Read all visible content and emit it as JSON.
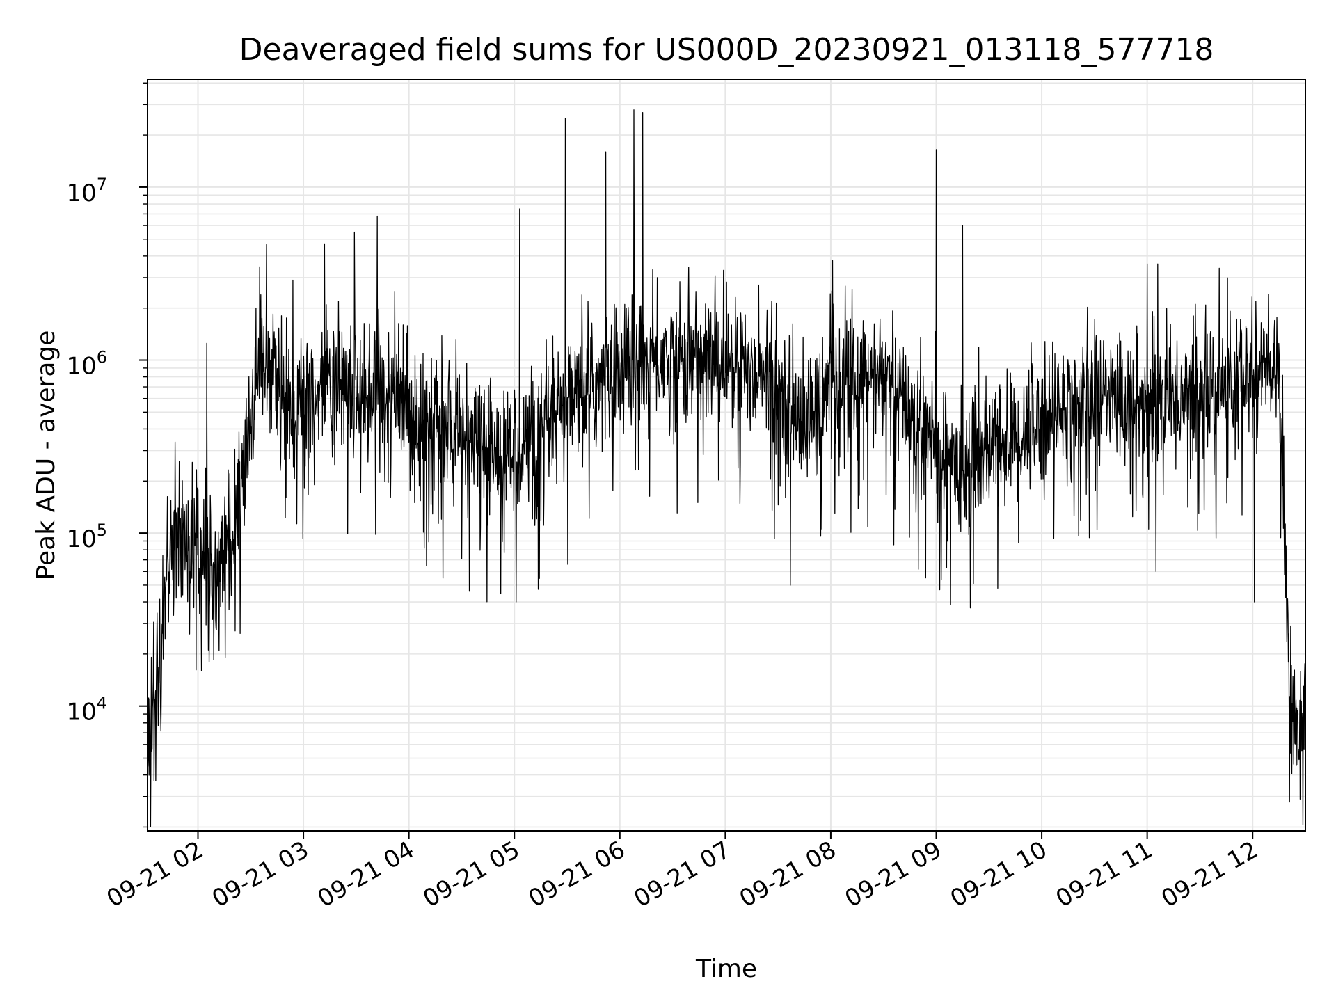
{
  "chart_data": {
    "type": "line",
    "title": "Deaveraged field sums for US000D_20230921_013118_577718",
    "xlabel": "Time",
    "ylabel": "Peak ADU - average",
    "x_range": [
      "2023-09-21T01:31:18",
      "2023-09-21T12:30:00"
    ],
    "y_scale": "log",
    "ylim": [
      1900,
      42000000
    ],
    "grid": true,
    "line_color": "#000000",
    "x_ticks": [
      {
        "value": "2023-09-21T02:00:00",
        "label": "09-21 02"
      },
      {
        "value": "2023-09-21T03:00:00",
        "label": "09-21 03"
      },
      {
        "value": "2023-09-21T04:00:00",
        "label": "09-21 04"
      },
      {
        "value": "2023-09-21T05:00:00",
        "label": "09-21 05"
      },
      {
        "value": "2023-09-21T06:00:00",
        "label": "09-21 06"
      },
      {
        "value": "2023-09-21T07:00:00",
        "label": "09-21 07"
      },
      {
        "value": "2023-09-21T08:00:00",
        "label": "09-21 08"
      },
      {
        "value": "2023-09-21T09:00:00",
        "label": "09-21 09"
      },
      {
        "value": "2023-09-21T10:00:00",
        "label": "09-21 10"
      },
      {
        "value": "2023-09-21T11:00:00",
        "label": "09-21 11"
      },
      {
        "value": "2023-09-21T12:00:00",
        "label": "09-21 12"
      }
    ],
    "y_ticks": [
      {
        "value": 10000,
        "base": "10",
        "exp": "4"
      },
      {
        "value": 100000,
        "base": "10",
        "exp": "5"
      },
      {
        "value": 1000000,
        "base": "10",
        "exp": "6"
      },
      {
        "value": 10000000,
        "base": "10",
        "exp": "7"
      }
    ],
    "series": [
      {
        "x": [
          "2023-09-21T01:31:18",
          "2023-09-21T01:33:00",
          "2023-09-21T01:35:00",
          "2023-09-21T01:38:00",
          "2023-09-21T01:41:00",
          "2023-09-21T01:44:00",
          "2023-09-21T01:47:00",
          "2023-09-21T01:50:00",
          "2023-09-21T01:53:00",
          "2023-09-21T01:56:00",
          "2023-09-21T02:00:00",
          "2023-09-21T02:05:00",
          "2023-09-21T02:10:00",
          "2023-09-21T02:15:00",
          "2023-09-21T02:20:00",
          "2023-09-21T02:25:00",
          "2023-09-21T02:30:00",
          "2023-09-21T02:35:00",
          "2023-09-21T02:40:00",
          "2023-09-21T02:45:00",
          "2023-09-21T02:50:00",
          "2023-09-21T02:55:00",
          "2023-09-21T03:00:00",
          "2023-09-21T03:10:00",
          "2023-09-21T03:20:00",
          "2023-09-21T03:30:00",
          "2023-09-21T03:40:00",
          "2023-09-21T03:50:00",
          "2023-09-21T04:00:00",
          "2023-09-21T04:15:00",
          "2023-09-21T04:30:00",
          "2023-09-21T04:45:00",
          "2023-09-21T05:00:00",
          "2023-09-21T05:15:00",
          "2023-09-21T05:30:00",
          "2023-09-21T05:45:00",
          "2023-09-21T06:00:00",
          "2023-09-21T06:15:00",
          "2023-09-21T06:30:00",
          "2023-09-21T06:45:00",
          "2023-09-21T07:00:00",
          "2023-09-21T07:15:00",
          "2023-09-21T07:30:00",
          "2023-09-21T07:45:00",
          "2023-09-21T08:00:00",
          "2023-09-21T08:15:00",
          "2023-09-21T08:30:00",
          "2023-09-21T08:45:00",
          "2023-09-21T09:00:00",
          "2023-09-21T09:15:00",
          "2023-09-21T09:30:00",
          "2023-09-21T09:45:00",
          "2023-09-21T10:00:00",
          "2023-09-21T10:15:00",
          "2023-09-21T10:30:00",
          "2023-09-21T10:45:00",
          "2023-09-21T11:00:00",
          "2023-09-21T11:15:00",
          "2023-09-21T11:30:00",
          "2023-09-21T11:45:00",
          "2023-09-21T12:00:00",
          "2023-09-21T12:10:00",
          "2023-09-21T12:15:00",
          "2023-09-21T12:18:00",
          "2023-09-21T12:21:00",
          "2023-09-21T12:25:00",
          "2023-09-21T12:30:00"
        ],
        "y": [
          6000,
          8000,
          10000,
          18000,
          40000,
          70000,
          100000,
          130000,
          110000,
          90000,
          80000,
          70000,
          60000,
          80000,
          100000,
          200000,
          500000,
          1000000,
          1000000,
          800000,
          600000,
          500000,
          500000,
          600000,
          700000,
          700000,
          650000,
          600000,
          500000,
          400000,
          350000,
          300000,
          300000,
          350000,
          500000,
          700000,
          900000,
          1000000,
          1000000,
          1000000,
          1000000,
          900000,
          700000,
          400000,
          700000,
          800000,
          800000,
          500000,
          300000,
          250000,
          300000,
          350000,
          450000,
          550000,
          600000,
          600000,
          550000,
          600000,
          650000,
          700000,
          800000,
          900000,
          700000,
          200000,
          9000,
          8000,
          12000
        ],
        "spikes": [
          {
            "x": "2023-09-21T02:05:00",
            "y": 1250000
          },
          {
            "x": "2023-09-21T02:33:00",
            "y": 2000000
          },
          {
            "x": "2023-09-21T02:54:00",
            "y": 2900000
          },
          {
            "x": "2023-09-21T03:12:00",
            "y": 4700000
          },
          {
            "x": "2023-09-21T03:29:00",
            "y": 5500000
          },
          {
            "x": "2023-09-21T03:42:00",
            "y": 6800000
          },
          {
            "x": "2023-09-21T05:03:00",
            "y": 7500000
          },
          {
            "x": "2023-09-21T05:29:00",
            "y": 25000000
          },
          {
            "x": "2023-09-21T05:52:00",
            "y": 16000000
          },
          {
            "x": "2023-09-21T06:08:00",
            "y": 28000000
          },
          {
            "x": "2023-09-21T06:13:00",
            "y": 27000000
          },
          {
            "x": "2023-09-21T09:00:00",
            "y": 16500000
          },
          {
            "x": "2023-09-21T09:15:00",
            "y": 6000000
          },
          {
            "x": "2023-09-21T11:00:00",
            "y": 3600000
          },
          {
            "x": "2023-09-21T11:06:00",
            "y": 3600000
          },
          {
            "x": "2023-09-21T11:41:00",
            "y": 3400000
          }
        ],
        "dips": [
          {
            "x": "2023-09-21T01:36:00",
            "y": 3700
          },
          {
            "x": "2023-09-21T02:02:00",
            "y": 16000
          },
          {
            "x": "2023-09-21T02:12:00",
            "y": 21000
          },
          {
            "x": "2023-09-21T05:01:00",
            "y": 40000
          },
          {
            "x": "2023-09-21T07:37:00",
            "y": 50000
          },
          {
            "x": "2023-09-21T08:54:00",
            "y": 55000
          },
          {
            "x": "2023-09-21T09:02:00",
            "y": 47000
          },
          {
            "x": "2023-09-21T09:35:00",
            "y": 48000
          },
          {
            "x": "2023-09-21T11:05:00",
            "y": 60000
          },
          {
            "x": "2023-09-21T12:01:00",
            "y": 40000
          },
          {
            "x": "2023-09-21T12:27:00",
            "y": 2900
          }
        ]
      }
    ]
  }
}
